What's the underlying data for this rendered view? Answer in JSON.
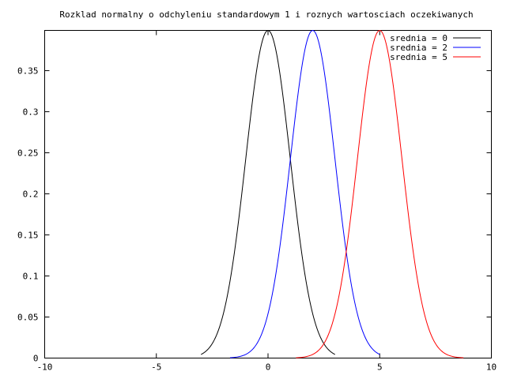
{
  "chart_data": {
    "type": "line",
    "title": "Rozklad normalny o odchyleniu standardowym 1 i roznych wartosciach oczekiwanych",
    "xlabel": "",
    "ylabel": "",
    "xlim": [
      -10,
      10
    ],
    "ylim": [
      0,
      0.399
    ],
    "x_ticks": [
      -10,
      -5,
      0,
      5,
      10
    ],
    "y_ticks": [
      0,
      0.05,
      0.1,
      0.15,
      0.2,
      0.25,
      0.3,
      0.35
    ],
    "x_tick_labels": [
      "-10",
      "-5",
      "0",
      "5",
      "10"
    ],
    "y_tick_labels": [
      "0",
      "0.05",
      "0.1",
      "0.15",
      "0.2",
      "0.25",
      "0.3",
      "0.35"
    ],
    "grid": false,
    "legend_position": "top-right",
    "series": [
      {
        "name": "srednia = 0",
        "color": "#000000",
        "mean": 0,
        "sd": 1,
        "x_range": [
          -3,
          3
        ]
      },
      {
        "name": "srednia = 2",
        "color": "#0000ff",
        "mean": 2,
        "sd": 1,
        "x_range": [
          -1.7,
          5
        ]
      },
      {
        "name": "srednia = 5",
        "color": "#ff0000",
        "mean": 5,
        "sd": 1,
        "x_range": [
          1.25,
          8.75
        ]
      }
    ]
  }
}
